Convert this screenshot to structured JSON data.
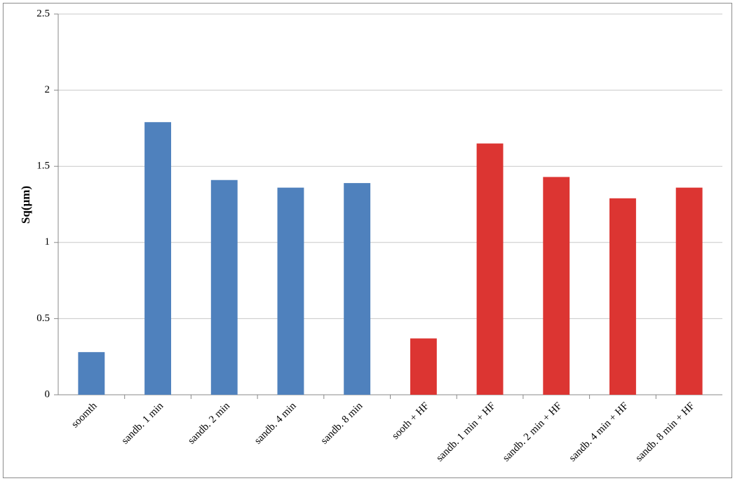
{
  "chart_data": {
    "type": "bar",
    "ylabel": "Sq(µm)",
    "categories": [
      "soomth",
      "sandb. 1 min",
      "sandb. 2 min",
      "sandb. 4 min",
      "sandb. 8 min",
      "sooth + HF",
      "sandb. 1 min + HF",
      "sandb. 2 min + HF",
      "sandb. 4 min + HF",
      "sandb. 8 min + HF"
    ],
    "values": [
      0.28,
      1.79,
      1.41,
      1.36,
      1.39,
      0.37,
      1.65,
      1.43,
      1.29,
      1.36
    ],
    "colors": [
      "#4f81bd",
      "#4f81bd",
      "#4f81bd",
      "#4f81bd",
      "#4f81bd",
      "#dc3532",
      "#dc3532",
      "#dc3532",
      "#dc3532",
      "#dc3532"
    ],
    "ylim": [
      0,
      2.5
    ],
    "yticks": [
      0,
      0.5,
      1,
      1.5,
      2,
      2.5
    ],
    "grid": true
  }
}
